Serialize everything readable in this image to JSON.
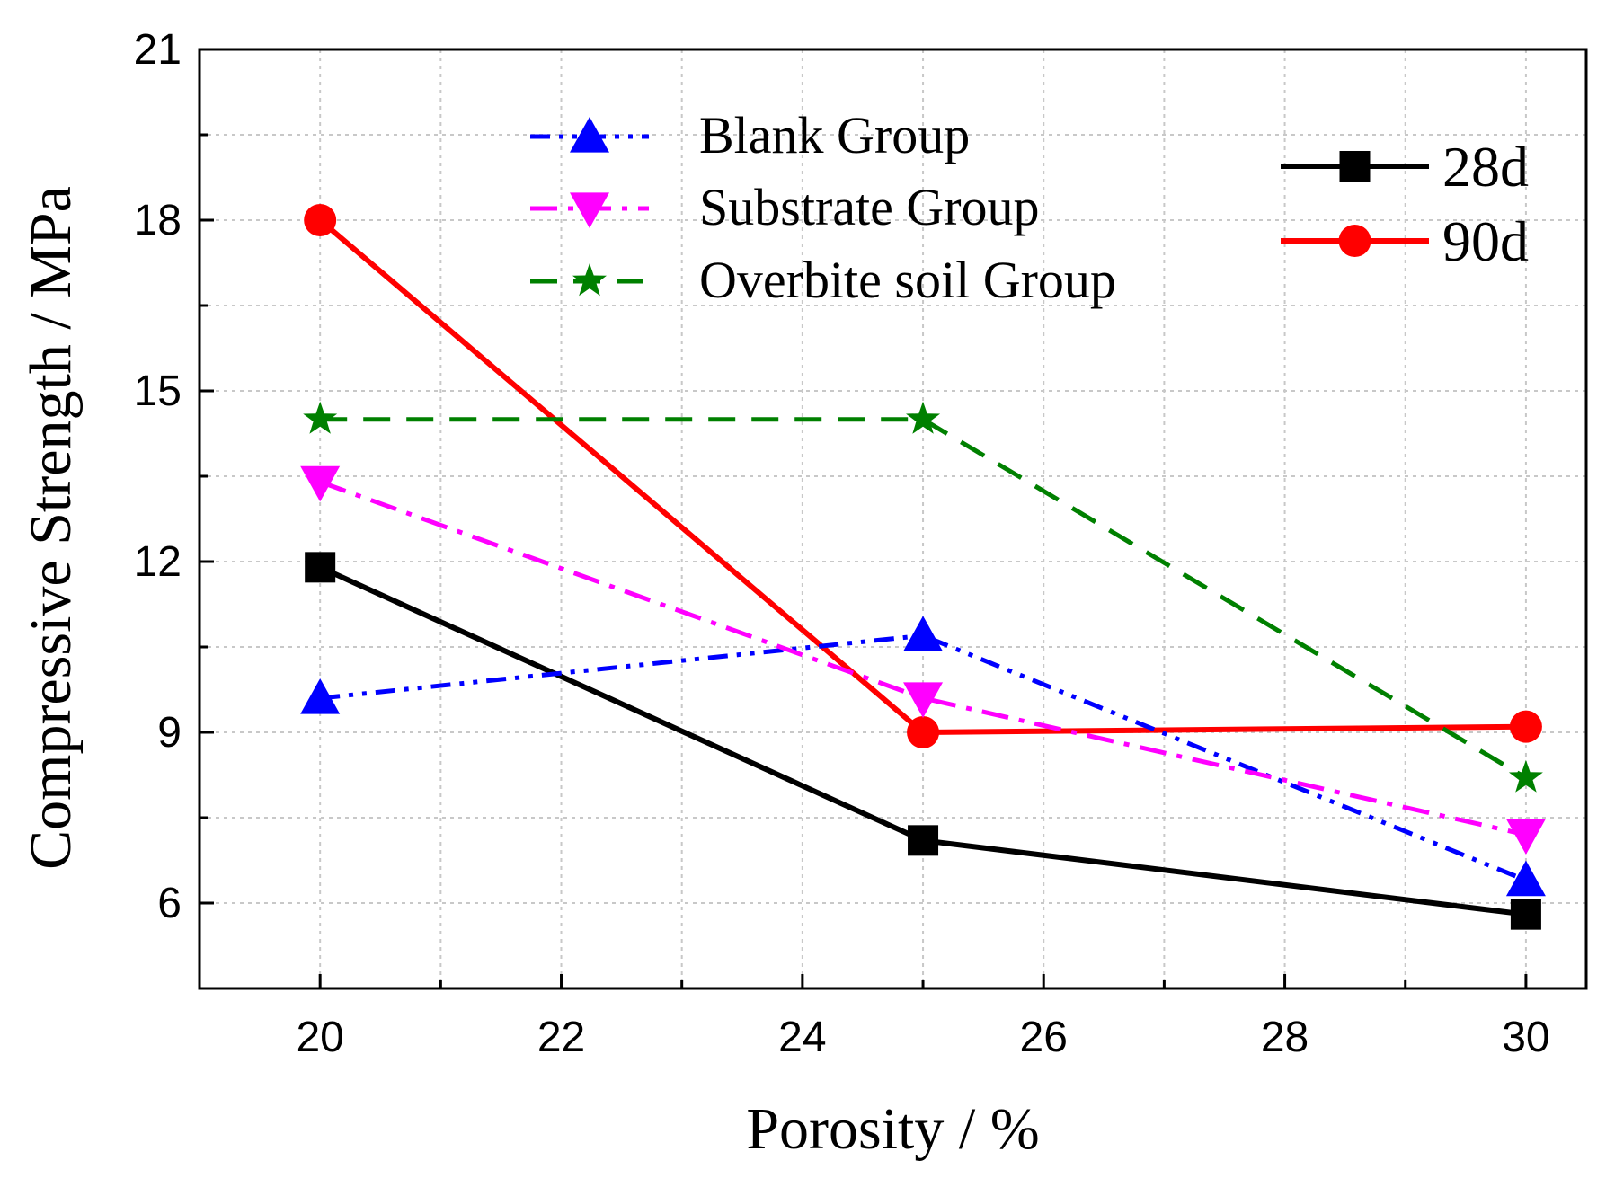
{
  "chart_data": {
    "type": "line",
    "xlabel": "Porosity / %",
    "ylabel": "Compressive Strength / MPa",
    "xlim": [
      19,
      30.5
    ],
    "ylim": [
      4.5,
      21
    ],
    "xticks": [
      20,
      22,
      24,
      26,
      28,
      30
    ],
    "yticks": [
      6,
      9,
      12,
      15,
      18,
      21
    ],
    "grid": true,
    "x": [
      20,
      25,
      30
    ],
    "series": [
      {
        "name": "Blank Group",
        "values": [
          9.6,
          10.7,
          6.4
        ],
        "color": "#0000ff",
        "marker": "triangle-up",
        "dash": "dash-dot-dot"
      },
      {
        "name": "Substrate Group",
        "values": [
          13.4,
          9.6,
          7.2
        ],
        "color": "#ff00ff",
        "marker": "triangle-down",
        "dash": "dash-dot"
      },
      {
        "name": "Overbite soil Group",
        "values": [
          14.5,
          14.5,
          8.2
        ],
        "color": "#008000",
        "marker": "star",
        "dash": "dash"
      },
      {
        "name": "28d",
        "values": [
          11.9,
          7.1,
          5.8
        ],
        "color": "#000000",
        "marker": "square",
        "dash": "solid"
      },
      {
        "name": "90d",
        "values": [
          18.0,
          9.0,
          9.1
        ],
        "color": "#ff0000",
        "marker": "circle",
        "dash": "solid"
      }
    ],
    "legend": {
      "left_entries": [
        "Blank Group",
        "Substrate Group",
        "Overbite soil Group"
      ],
      "right_entries": [
        "28d",
        "90d"
      ],
      "placement": "top"
    }
  }
}
